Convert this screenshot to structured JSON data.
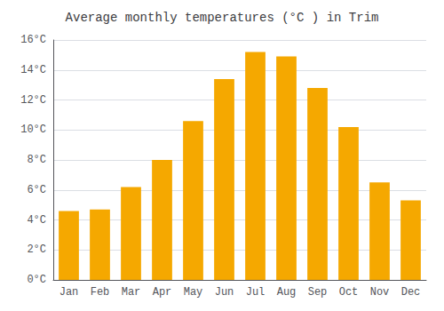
{
  "chart_data": {
    "type": "bar",
    "title": "Average monthly temperatures (°C ) in Trim",
    "categories": [
      "Jan",
      "Feb",
      "Mar",
      "Apr",
      "May",
      "Jun",
      "Jul",
      "Aug",
      "Sep",
      "Oct",
      "Nov",
      "Dec"
    ],
    "values": [
      4.6,
      4.7,
      6.2,
      8.0,
      10.6,
      13.4,
      15.2,
      14.9,
      12.8,
      10.2,
      6.5,
      5.3
    ],
    "color": "#F5A800",
    "ylim": [
      0,
      16
    ],
    "yticks": [
      {
        "value": 0,
        "label": "0°C"
      },
      {
        "value": 2,
        "label": "2°C"
      },
      {
        "value": 4,
        "label": "4°C"
      },
      {
        "value": 6,
        "label": "6°C"
      },
      {
        "value": 8,
        "label": "8°C"
      },
      {
        "value": 10,
        "label": "10°C"
      },
      {
        "value": 12,
        "label": "12°C"
      },
      {
        "value": 14,
        "label": "14°C"
      },
      {
        "value": 16,
        "label": "16°C"
      }
    ],
    "grid": true
  }
}
